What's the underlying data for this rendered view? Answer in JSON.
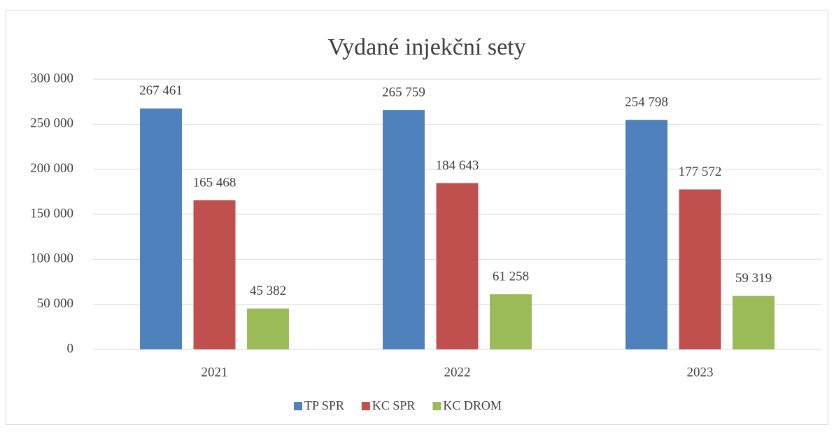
{
  "chart_data": {
    "type": "bar",
    "title": "Vydané injekční sety",
    "categories": [
      "2021",
      "2022",
      "2023"
    ],
    "series": [
      {
        "name": "TP SPR",
        "color": "#4f81bd",
        "values": [
          267461,
          265759,
          254798
        ],
        "value_labels": [
          "267 461",
          "265 759",
          "254 798"
        ]
      },
      {
        "name": "KC SPR",
        "color": "#c0504d",
        "values": [
          165468,
          184643,
          177572
        ],
        "value_labels": [
          "165 468",
          "184 643",
          "177 572"
        ]
      },
      {
        "name": "KC DROM",
        "color": "#9bbb59",
        "values": [
          45382,
          61258,
          59319
        ],
        "value_labels": [
          "45 382",
          "61 258",
          "59 319"
        ]
      }
    ],
    "ylim": [
      0,
      300000
    ],
    "yticks": [
      0,
      {
        "value": 50000,
        "label": "50 000"
      },
      {
        "value": 100000,
        "label": "100 000"
      },
      {
        "value": 150000,
        "label": "150 000"
      },
      {
        "value": 200000,
        "label": "200 000"
      },
      {
        "value": 250000,
        "label": "250 000"
      },
      {
        "value": 300000,
        "label": "300 000"
      }
    ],
    "grid": true,
    "legend": "bottom"
  }
}
